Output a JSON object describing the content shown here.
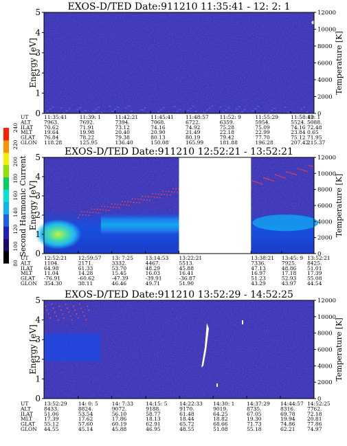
{
  "chart_data": [
    {
      "type": "heatmap",
      "title": "EXOS-D/TED    Date:911210   11:35:41 - 12: 2: 1",
      "ylabel": "Energy [eV]",
      "y2label": "Temperature [K]",
      "ylim": [
        0,
        5
      ],
      "y2lim": [
        0,
        12000
      ],
      "yticks": [
        0,
        1,
        2,
        3,
        4,
        5
      ],
      "y2ticks": [
        0,
        2000,
        4000,
        6000,
        8000,
        10000,
        12000
      ],
      "row_labels": [
        "UT",
        "ALT",
        "ILAT",
        "MLT",
        "GLAT",
        "GLON"
      ],
      "columns": [
        [
          "11:35:41",
          "7963.",
          "70.62",
          "19.64",
          "76.84",
          "118.28"
        ],
        [
          "11:39: 1",
          "7692.",
          "71.91",
          "19.98",
          "78.22",
          "125.95"
        ],
        [
          "11:42:21",
          "7394.",
          "73.12",
          "20.40",
          "79.38",
          "136.40"
        ],
        [
          "11:45:41",
          "7068.",
          "74.16",
          "20.90",
          "80.13",
          "150.08"
        ],
        [
          "11:48:57",
          "6722.",
          "74.92",
          "21.49",
          "80.19",
          "165.99"
        ],
        [
          "11:52: 9",
          "6359.",
          "75.28",
          "22.18",
          "79.42",
          "181.88"
        ],
        [
          "11:55:29",
          "5954.",
          "75.09",
          "22.99",
          "77.70",
          "196.28"
        ],
        [
          "11:58:49",
          "5524.",
          "74.16",
          "23.84",
          "75.12",
          "207.42"
        ],
        [
          "12: 1",
          "5088.",
          "72.48",
          "0.65",
          "71.95",
          "215.37"
        ]
      ],
      "data_gaps": []
    },
    {
      "type": "heatmap",
      "title": "EXOS-D/TED    Date:911210   12:52:21 - 13:52:21",
      "ylabel": "Energy [eV]",
      "y2label": "Temperature [K]",
      "ylim": [
        0,
        5
      ],
      "y2lim": [
        0,
        12000
      ],
      "yticks": [
        0,
        1,
        2,
        3,
        4,
        5
      ],
      "y2ticks": [
        0,
        2000,
        4000,
        6000,
        8000,
        10000,
        12000
      ],
      "row_labels": [
        "UT",
        "ALT",
        "ILAT",
        "MLT",
        "GLAT",
        "GLON"
      ],
      "columns": [
        [
          "12:52:21",
          "1104.",
          "64.98",
          "11.04",
          "-76.91",
          "354.30"
        ],
        [
          "12:59:57",
          "2171.",
          "61.33",
          "14.28",
          "-60.62",
          "38.11"
        ],
        [
          "13: 7:25",
          "3332.",
          "53.70",
          "15.45",
          "-47.39",
          "46.46"
        ],
        [
          "13:14:53",
          "4467.",
          "48.29",
          "16.03",
          "-39.91",
          "49.71"
        ],
        [
          "13:22:21",
          "5513.",
          "45.88",
          "16.41",
          "-36.87",
          "51.90"
        ],
        [
          "13:38:21",
          "7336.",
          "47.13",
          "16.97",
          "51.23",
          "43.29"
        ],
        [
          "13:45: 9",
          "7925.",
          "48.86",
          "17.18",
          "52.93",
          "43.97"
        ],
        [
          "13:52:21",
          "8425.",
          "51.01",
          "17.39",
          "55.08",
          "44.54"
        ]
      ],
      "data_gaps": [
        [
          "13:22:21",
          "13:38:21"
        ]
      ]
    },
    {
      "type": "heatmap",
      "title": "EXOS-D/TED    Date:911210   13:52:29 - 14:52:25",
      "ylabel": "Energy [eV]",
      "y2label": "Temperature [K]",
      "ylim": [
        0,
        5
      ],
      "y2lim": [
        0,
        12000
      ],
      "yticks": [
        0,
        1,
        2,
        3,
        4,
        5
      ],
      "y2ticks": [
        0,
        2000,
        4000,
        6000,
        8000,
        10000,
        12000
      ],
      "row_labels": [
        "UT",
        "ALT",
        "ILAT",
        "MLT",
        "GLAT",
        "GLON"
      ],
      "columns": [
        [
          "13:52:29",
          "8433.",
          "51.06",
          "17.39",
          "55.12",
          "44.55"
        ],
        [
          "14: 0: 5",
          "8824.",
          "53.54",
          "17.62",
          "57.60",
          "45.14"
        ],
        [
          "14: 7:33",
          "9072.",
          "56.10",
          "17.86",
          "60.19",
          "45.88"
        ],
        [
          "14:15: 5",
          "9188.",
          "58.77",
          "18.13",
          "62.91",
          "46.95"
        ],
        [
          "14:22:33",
          "9170.",
          "61.48",
          "18.44",
          "65.72",
          "48.55"
        ],
        [
          "14:30: 1",
          "9019.",
          "64.25",
          "18.82",
          "68.66",
          "51.08"
        ],
        [
          "14:37:29",
          "8735.",
          "67.05",
          "19.30",
          "71.73",
          "55.18"
        ],
        [
          "14:44:57",
          "8316.",
          "69.78",
          "19.94",
          "74.86",
          "62.21"
        ],
        [
          "14:52:25",
          "7762.",
          "72.18",
          "20.81",
          "77.86",
          "74.97"
        ]
      ],
      "data_gaps": []
    }
  ],
  "colorbar": {
    "label": "Second Harmonic Current",
    "range": [
      80,
      240
    ],
    "ticks": [
      80,
      100,
      120,
      140,
      160,
      180,
      200,
      220,
      240
    ],
    "colors": [
      "#000000",
      "#1a0a6e",
      "#2020c0",
      "#1e5fe8",
      "#10b4f0",
      "#00e4d0",
      "#00d060",
      "#90e000",
      "#f0f000",
      "#ff9000",
      "#ff2000"
    ]
  },
  "colors": {
    "background_field": "#3c34b4",
    "gap": "#ffffff"
  }
}
